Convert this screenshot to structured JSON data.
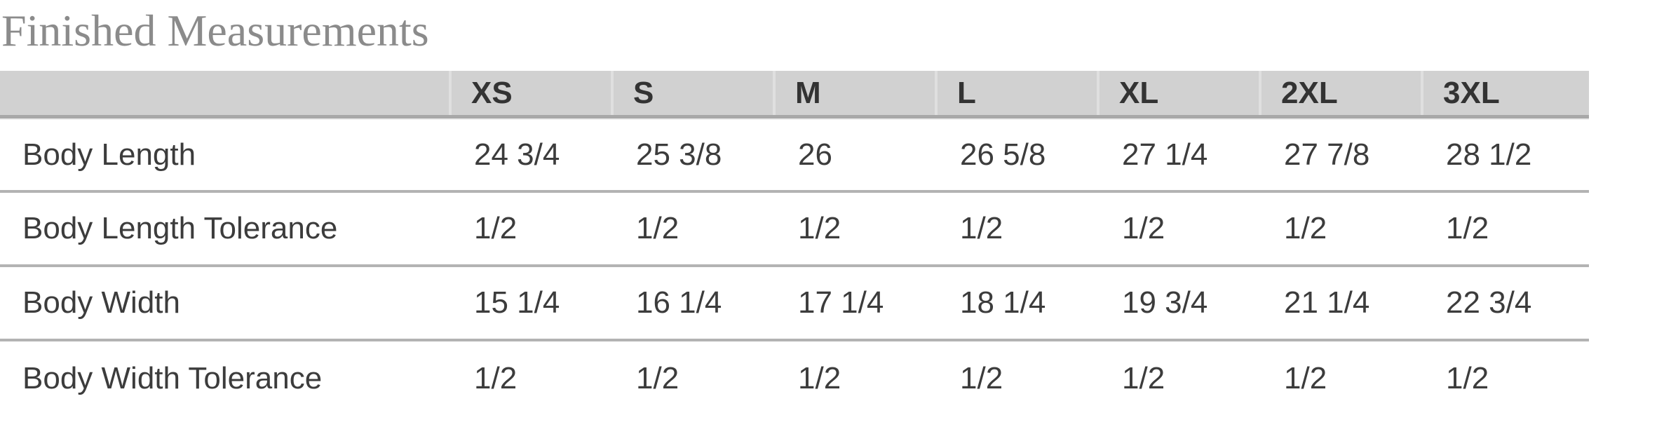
{
  "title": "Finished Measurements",
  "table": {
    "label_column_header": "",
    "size_headers": [
      "XS",
      "S",
      "M",
      "L",
      "XL",
      "2XL",
      "3XL"
    ],
    "rows": [
      {
        "label": "Body Length",
        "values": [
          "24 3/4",
          "25 3/8",
          "26",
          "26 5/8",
          "27 1/4",
          "27 7/8",
          "28 1/2"
        ]
      },
      {
        "label": "Body Length Tolerance",
        "values": [
          "1/2",
          "1/2",
          "1/2",
          "1/2",
          "1/2",
          "1/2",
          "1/2"
        ]
      },
      {
        "label": "Body Width",
        "values": [
          "15 1/4",
          "16 1/4",
          "17 1/4",
          "18 1/4",
          "19 3/4",
          "21 1/4",
          "22 3/4"
        ]
      },
      {
        "label": "Body Width Tolerance",
        "values": [
          "1/2",
          "1/2",
          "1/2",
          "1/2",
          "1/2",
          "1/2",
          "1/2"
        ]
      }
    ]
  },
  "colors": {
    "title_text": "#8b8b8b",
    "header_background": "#d1d1d1",
    "header_text": "#333333",
    "header_divider": "#dfdfdf",
    "header_bottom_border": "#a8a8a8",
    "row_separator": "#b3b3b3",
    "body_text": "#3c3c3c",
    "page_background": "#ffffff"
  }
}
